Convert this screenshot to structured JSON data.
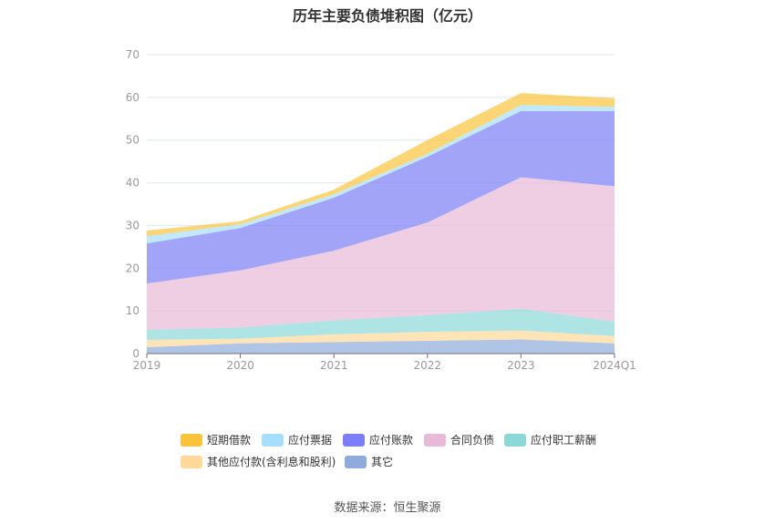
{
  "chart_data": {
    "type": "area",
    "stacked": true,
    "title": "历年主要负债堆积图（亿元）",
    "categories": [
      "2019",
      "2020",
      "2021",
      "2022",
      "2023",
      "2024Q1"
    ],
    "ylim": [
      0,
      70
    ],
    "yticks": [
      0,
      10,
      20,
      30,
      40,
      50,
      60,
      70
    ],
    "grid": true,
    "legend_position": "bottom",
    "series": [
      {
        "name": "其它",
        "color": "#8fabdb",
        "values": [
          1.5,
          2.4,
          2.7,
          3.0,
          3.3,
          2.4
        ]
      },
      {
        "name": "其他应付款(含利息和股利)",
        "color": "#ffd89a",
        "values": [
          1.7,
          1.1,
          1.8,
          2.1,
          2.1,
          1.7
        ]
      },
      {
        "name": "应付职工薪酬",
        "color": "#8cd8d8",
        "values": [
          2.4,
          2.6,
          3.3,
          3.9,
          5.1,
          3.4
        ]
      },
      {
        "name": "合同负债",
        "color": "#e8b9d8",
        "values": [
          10.8,
          13.4,
          16.3,
          21.7,
          30.8,
          31.7
        ]
      },
      {
        "name": "应付账款",
        "color": "#7b7ef5",
        "values": [
          9.4,
          9.9,
          12.4,
          15.4,
          15.5,
          17.6
        ]
      },
      {
        "name": "应付票据",
        "color": "#a6dffd",
        "values": [
          1.7,
          0.9,
          0.8,
          0.7,
          1.4,
          1.0
        ]
      },
      {
        "name": "短期借款",
        "color": "#fbc33c",
        "values": [
          1.3,
          0.7,
          1.1,
          3.2,
          2.8,
          2.0
        ]
      }
    ]
  },
  "source": "数据来源：恒生聚源"
}
